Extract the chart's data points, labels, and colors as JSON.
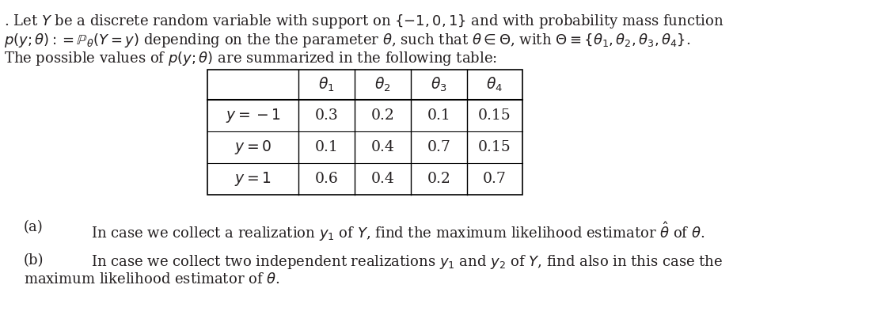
{
  "title_line1": ". Let $Y$ be a discrete random variable with support on $\\{-1, 0, 1\\}$ and with probability mass function",
  "title_line2": "$p(y; \\theta) := \\mathbb{P}_\\theta(Y = y)$ depending on the the parameter $\\theta$, such that $\\theta \\in \\Theta$, with $\\Theta \\equiv \\{\\theta_1, \\theta_2, \\theta_3, \\theta_4\\}$.",
  "title_line3": "The possible values of $p(y; \\theta)$ are summarized in the following table:",
  "col_headers": [
    "$\\theta_1$",
    "$\\theta_2$",
    "$\\theta_3$",
    "$\\theta_4$"
  ],
  "row_headers": [
    "$y = -1$",
    "$y = 0$",
    "$y = 1$"
  ],
  "table_data": [
    [
      "0.3",
      "0.2",
      "0.1",
      "0.15"
    ],
    [
      "0.1",
      "0.4",
      "0.7",
      "0.15"
    ],
    [
      "0.6",
      "0.4",
      "0.2",
      "0.7"
    ]
  ],
  "part_a_label": "(a)",
  "part_a_text": "In case we collect a realization $y_1$ of $Y$, find the maximum likelihood estimator $\\hat{\\theta}$ of $\\theta$.",
  "part_b_label": "(b)",
  "part_b_line1": "In case we collect two independent realizations $y_1$ and $y_2$ of $Y$, find also in this case the",
  "part_b_line2": "maximum likelihood estimator of $\\theta$.",
  "bg_color": "#ffffff",
  "text_color": "#231f20",
  "fontsize_main": 13.0,
  "fontsize_table": 13.5
}
